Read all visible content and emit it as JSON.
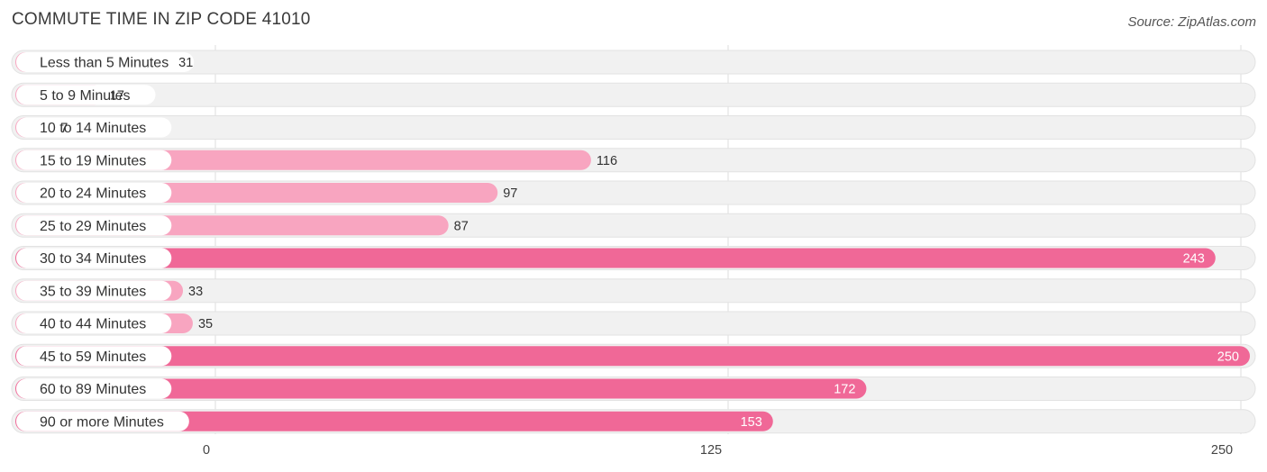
{
  "chart_data": {
    "type": "bar",
    "orientation": "horizontal",
    "title": "COMMUTE TIME IN ZIP CODE 41010",
    "source": "Source: ZipAtlas.com",
    "categories": [
      "Less than 5 Minutes",
      "5 to 9 Minutes",
      "10 to 14 Minutes",
      "15 to 19 Minutes",
      "20 to 24 Minutes",
      "25 to 29 Minutes",
      "30 to 34 Minutes",
      "35 to 39 Minutes",
      "40 to 44 Minutes",
      "45 to 59 Minutes",
      "60 to 89 Minutes",
      "90 or more Minutes"
    ],
    "values": [
      31,
      17,
      7,
      116,
      97,
      87,
      243,
      33,
      35,
      250,
      172,
      153
    ],
    "xlim": [
      0,
      250
    ],
    "xticks": [
      0,
      125,
      250
    ],
    "xtick_labels": [
      "0",
      "125",
      "250"
    ],
    "grid": true,
    "xlabel": "",
    "ylabel": ""
  },
  "colors": {
    "bar_light": "#f8a5c0",
    "bar_dark": "#f06897",
    "track": "#f1f1f1",
    "track_border": "#e2e2e2",
    "grid": "#dddddd",
    "value_outside": "#333333",
    "value_inside": "#ffffff"
  }
}
